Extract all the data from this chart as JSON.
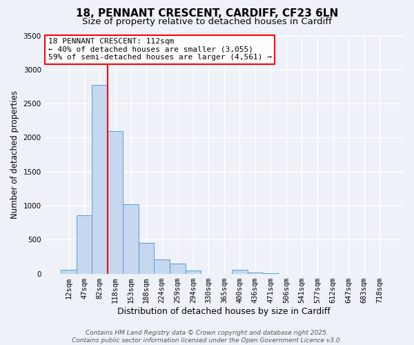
{
  "title": "18, PENNANT CRESCENT, CARDIFF, CF23 6LN",
  "subtitle": "Size of property relative to detached houses in Cardiff",
  "xlabel": "Distribution of detached houses by size in Cardiff",
  "ylabel": "Number of detached properties",
  "bar_labels": [
    "12sqm",
    "47sqm",
    "82sqm",
    "118sqm",
    "153sqm",
    "188sqm",
    "224sqm",
    "259sqm",
    "294sqm",
    "330sqm",
    "365sqm",
    "400sqm",
    "436sqm",
    "471sqm",
    "506sqm",
    "541sqm",
    "577sqm",
    "612sqm",
    "647sqm",
    "683sqm",
    "718sqm"
  ],
  "bar_values": [
    55,
    855,
    2775,
    2100,
    1020,
    450,
    205,
    145,
    50,
    0,
    0,
    55,
    20,
    5,
    0,
    0,
    0,
    0,
    0,
    0,
    0
  ],
  "bar_color": "#c5d8f0",
  "bar_edge_color": "#5b9bd5",
  "vline_color": "red",
  "ylim": [
    0,
    3500
  ],
  "yticks": [
    0,
    500,
    1000,
    1500,
    2000,
    2500,
    3000,
    3500
  ],
  "annotation_title": "18 PENNANT CRESCENT: 112sqm",
  "annotation_line1": "← 40% of detached houses are smaller (3,055)",
  "annotation_line2": "59% of semi-detached houses are larger (4,561) →",
  "annotation_box_color": "white",
  "annotation_box_edge_color": "red",
  "footer1": "Contains HM Land Registry data © Crown copyright and database right 2025.",
  "footer2": "Contains public sector information licensed under the Open Government Licence v3.0.",
  "bg_color": "#eef2f8",
  "plot_bg_color": "#eef2f8",
  "title_fontsize": 11,
  "subtitle_fontsize": 9.5,
  "xlabel_fontsize": 9,
  "ylabel_fontsize": 8.5,
  "tick_fontsize": 7.5,
  "annotation_fontsize": 8,
  "footer_fontsize": 6.5,
  "vline_bar_idx": 2
}
